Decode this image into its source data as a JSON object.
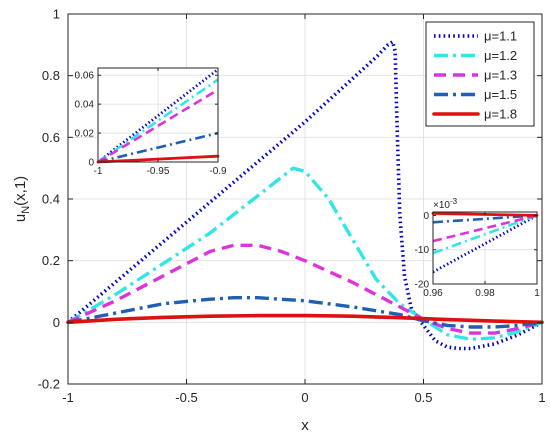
{
  "colors": {
    "mu_1_1": "#0000c8",
    "mu_1_2": "#33e6e6",
    "mu_1_3": "#dd33dd",
    "mu_1_5": "#1f5fb4",
    "mu_1_8": "#dd1111",
    "grid": "#e4e4e4",
    "axis": "#262626"
  },
  "chart_data": [
    {
      "type": "line",
      "role": "main",
      "xlabel": "x",
      "ylabel": "u_N(x,1)",
      "xlim": [
        -1,
        1
      ],
      "ylim": [
        -0.2,
        1
      ],
      "grid": true,
      "legend_position": "top-right",
      "xticks": [
        {
          "v": -1,
          "label": "-1"
        },
        {
          "v": -0.5,
          "label": "-0.5"
        },
        {
          "v": 0,
          "label": "0"
        },
        {
          "v": 0.5,
          "label": "0.5"
        },
        {
          "v": 1,
          "label": "1"
        }
      ],
      "yticks": [
        {
          "v": -0.2,
          "label": "-0.2"
        },
        {
          "v": 0,
          "label": "0"
        },
        {
          "v": 0.2,
          "label": "0.2"
        },
        {
          "v": 0.4,
          "label": "0.4"
        },
        {
          "v": 0.6,
          "label": "0.6"
        },
        {
          "v": 0.8,
          "label": "0.8"
        },
        {
          "v": 1,
          "label": "1"
        }
      ],
      "series": [
        {
          "name": "μ=1.1",
          "style": "dotted",
          "color_key": "mu_1_1",
          "x": [
            -1,
            -0.8,
            -0.6,
            -0.4,
            -0.2,
            0,
            0.2,
            0.3,
            0.35,
            0.37,
            0.38,
            0.39,
            0.4,
            0.42,
            0.45,
            0.5,
            0.55,
            0.6,
            0.65,
            0.7,
            0.8,
            0.9,
            1
          ],
          "y": [
            0,
            0.13,
            0.26,
            0.39,
            0.52,
            0.65,
            0.79,
            0.86,
            0.9,
            0.91,
            0.88,
            0.6,
            0.35,
            0.15,
            0.04,
            -0.01,
            -0.06,
            -0.08,
            -0.085,
            -0.085,
            -0.07,
            -0.04,
            0
          ]
        },
        {
          "name": "μ=1.2",
          "style": "dashdot",
          "color_key": "mu_1_2",
          "x": [
            -1,
            -0.8,
            -0.6,
            -0.4,
            -0.2,
            -0.1,
            -0.05,
            0,
            0.1,
            0.2,
            0.3,
            0.4,
            0.5,
            0.6,
            0.7,
            0.8,
            0.9,
            1
          ],
          "y": [
            0,
            0.09,
            0.19,
            0.29,
            0.41,
            0.47,
            0.5,
            0.49,
            0.4,
            0.27,
            0.14,
            0.06,
            0.01,
            -0.04,
            -0.055,
            -0.05,
            -0.03,
            0
          ]
        },
        {
          "name": "μ=1.3",
          "style": "dashed",
          "color_key": "mu_1_3",
          "x": [
            -1,
            -0.8,
            -0.6,
            -0.4,
            -0.3,
            -0.2,
            -0.1,
            0,
            0.2,
            0.4,
            0.5,
            0.6,
            0.7,
            0.8,
            0.9,
            1
          ],
          "y": [
            0,
            0.07,
            0.15,
            0.23,
            0.25,
            0.25,
            0.23,
            0.2,
            0.13,
            0.05,
            0.01,
            -0.02,
            -0.035,
            -0.035,
            -0.02,
            0
          ]
        },
        {
          "name": "μ=1.5",
          "style": "dashdot",
          "color_key": "mu_1_5",
          "x": [
            -1,
            -0.8,
            -0.6,
            -0.4,
            -0.3,
            -0.2,
            0,
            0.2,
            0.4,
            0.5,
            0.6,
            0.7,
            0.8,
            0.9,
            1
          ],
          "y": [
            0,
            0.03,
            0.06,
            0.075,
            0.08,
            0.08,
            0.07,
            0.05,
            0.025,
            0.005,
            -0.01,
            -0.015,
            -0.015,
            -0.01,
            0
          ]
        },
        {
          "name": "μ=1.8",
          "style": "solid",
          "color_key": "mu_1_8",
          "x": [
            -1,
            -0.8,
            -0.6,
            -0.4,
            -0.2,
            0,
            0.2,
            0.4,
            0.6,
            0.8,
            1
          ],
          "y": [
            0,
            0.01,
            0.016,
            0.02,
            0.022,
            0.022,
            0.02,
            0.015,
            0.009,
            0.004,
            0
          ]
        }
      ]
    },
    {
      "type": "line",
      "role": "inset-left",
      "xlim": [
        -1,
        -0.9
      ],
      "ylim": [
        0,
        0.065
      ],
      "grid": true,
      "xticks": [
        {
          "v": -1,
          "label": "-1"
        },
        {
          "v": -0.95,
          "label": "-0.95"
        },
        {
          "v": -0.9,
          "label": "-0.9"
        }
      ],
      "yticks": [
        {
          "v": 0,
          "label": "0"
        },
        {
          "v": 0.02,
          "label": "0.02"
        },
        {
          "v": 0.04,
          "label": "0.04"
        },
        {
          "v": 0.06,
          "label": "0.06"
        }
      ],
      "series": [
        {
          "style": "dotted",
          "color_key": "mu_1_1",
          "x": [
            -1,
            -0.9
          ],
          "y": [
            0,
            0.064
          ]
        },
        {
          "style": "dashdot",
          "color_key": "mu_1_2",
          "x": [
            -1,
            -0.9
          ],
          "y": [
            0,
            0.057
          ]
        },
        {
          "style": "dashed",
          "color_key": "mu_1_3",
          "x": [
            -1,
            -0.9
          ],
          "y": [
            0,
            0.05
          ]
        },
        {
          "style": "dashdot",
          "color_key": "mu_1_5",
          "x": [
            -1,
            -0.9
          ],
          "y": [
            0,
            0.02
          ]
        },
        {
          "style": "solid",
          "color_key": "mu_1_8",
          "x": [
            -1,
            -0.9
          ],
          "y": [
            0,
            0.004
          ]
        }
      ]
    },
    {
      "type": "line",
      "role": "inset-right",
      "xlim": [
        0.96,
        1
      ],
      "ylim": [
        -0.02,
        0.001
      ],
      "exponent_label": "×10",
      "exponent_power": "-3",
      "grid": true,
      "xticks": [
        {
          "v": 0.96,
          "label": "0.96"
        },
        {
          "v": 0.98,
          "label": "0.98"
        },
        {
          "v": 1,
          "label": "1"
        }
      ],
      "yticks": [
        {
          "v": 0,
          "label": "0"
        },
        {
          "v": -0.01,
          "label": "-10"
        },
        {
          "v": -0.02,
          "label": "-20"
        }
      ],
      "series": [
        {
          "style": "dotted",
          "color_key": "mu_1_1",
          "x": [
            0.96,
            1
          ],
          "y": [
            -0.0165,
            0
          ]
        },
        {
          "style": "dashdot",
          "color_key": "mu_1_2",
          "x": [
            0.96,
            1
          ],
          "y": [
            -0.011,
            0
          ]
        },
        {
          "style": "dashed",
          "color_key": "mu_1_3",
          "x": [
            0.96,
            1
          ],
          "y": [
            -0.0075,
            0
          ]
        },
        {
          "style": "dashdot",
          "color_key": "mu_1_5",
          "x": [
            0.96,
            1
          ],
          "y": [
            -0.002,
            0
          ]
        },
        {
          "style": "solid",
          "color_key": "mu_1_8",
          "x": [
            0.96,
            1
          ],
          "y": [
            0.0006,
            0
          ]
        }
      ]
    }
  ]
}
